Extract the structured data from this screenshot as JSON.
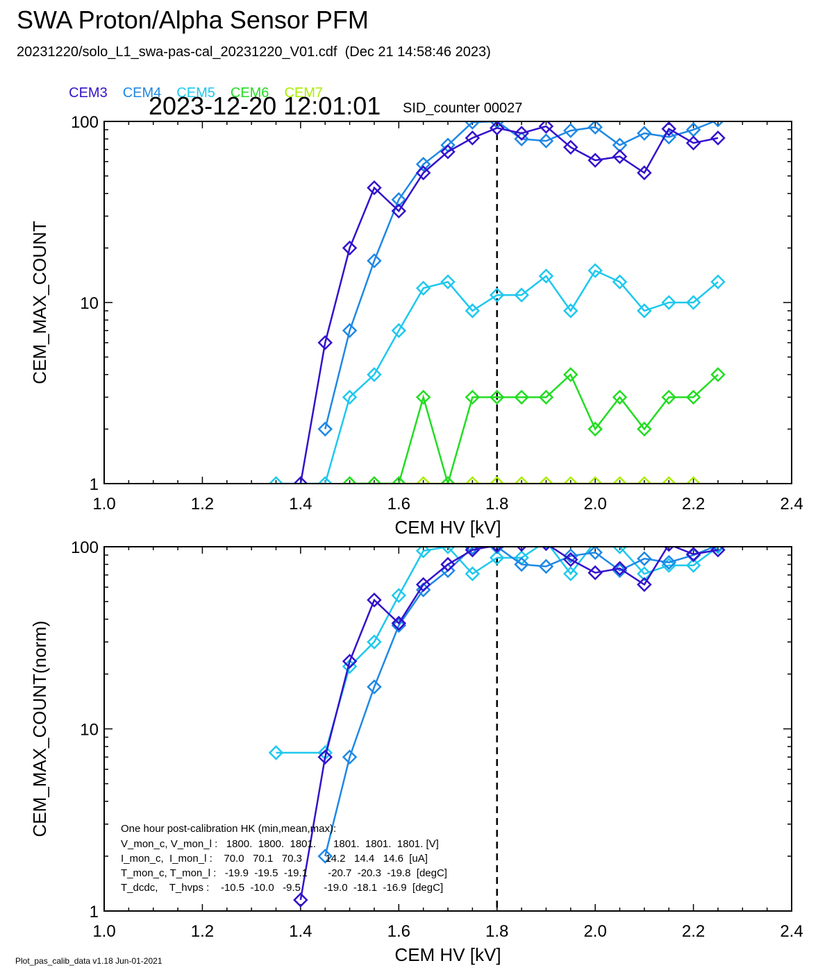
{
  "header": {
    "title": "SWA Proton/Alpha Sensor PFM",
    "subtitle": "20231220/solo_L1_swa-pas-cal_20231220_V01.cdf  (Dec 21 14:58:46 2023)",
    "timestamp": "2023-12-20 12:01:01",
    "sid_counter": "SID_counter 00027"
  },
  "legend": [
    {
      "label": "CEM3",
      "color": "#3311cc"
    },
    {
      "label": "CEM4",
      "color": "#1e88e5"
    },
    {
      "label": "CEM5",
      "color": "#1ec8ee"
    },
    {
      "label": "CEM6",
      "color": "#22dd22"
    },
    {
      "label": "CEM7",
      "color": "#aaee00"
    }
  ],
  "hk_table": {
    "title": "One hour post-calibration HK (min,mean,max):",
    "rows": [
      "V_mon_c, V_mon_l :   1800.  1800.  1801.      1801.  1801.  1801. [V]",
      "I_mon_c,  I_mon_l :    70.0   70.1   70.3        14.2   14.4   14.6  [uA]",
      "T_mon_c, T_mon_l :   -19.9  -19.5  -19.1       -20.7  -20.3  -19.8  [degC]",
      "T_dcdc,    T_hvps :    -10.5  -10.0   -9.5        -19.0  -18.1  -16.9  [degC]"
    ]
  },
  "footer": "Plot_pas_calib_data v1.18 Jun-01-2021",
  "chart_data": [
    {
      "type": "line",
      "xlabel": "CEM HV [kV]",
      "ylabel": "CEM_MAX_COUNT",
      "xlim": [
        1.0,
        2.4
      ],
      "ylim": [
        1,
        100
      ],
      "yscale": "log",
      "x_ticks": [
        "1.0",
        "1.2",
        "1.4",
        "1.6",
        "1.8",
        "2.0",
        "2.2",
        "2.4"
      ],
      "y_ticks": [
        "1",
        "10",
        "100"
      ],
      "marker": "diamond",
      "vline": 1.8,
      "series": [
        {
          "name": "CEM7",
          "color": "#aaee00",
          "x": [
            1.5,
            1.55,
            1.6,
            1.65,
            1.7,
            1.75,
            1.8,
            1.85,
            1.9,
            1.95,
            2.0,
            2.05,
            2.1,
            2.15,
            2.2
          ],
          "y": [
            1,
            1,
            1,
            1,
            1,
            1,
            1,
            1,
            1,
            1,
            1,
            1,
            1,
            1,
            1
          ]
        },
        {
          "name": "CEM6",
          "color": "#22dd22",
          "x": [
            1.5,
            1.55,
            1.6,
            1.65,
            1.7,
            1.75,
            1.8,
            1.85,
            1.9,
            1.95,
            2.0,
            2.05,
            2.1,
            2.15,
            2.2,
            2.25
          ],
          "y": [
            1,
            1,
            1,
            3,
            1,
            3,
            3,
            3,
            3,
            4,
            2,
            3,
            2,
            3,
            3,
            4
          ]
        },
        {
          "name": "CEM5",
          "color": "#1ec8ee",
          "x": [
            1.35,
            1.45,
            1.5,
            1.55,
            1.6,
            1.65,
            1.7,
            1.75,
            1.8,
            1.85,
            1.9,
            1.95,
            2.0,
            2.05,
            2.1,
            2.15,
            2.2,
            2.25
          ],
          "y": [
            1,
            1,
            3,
            4,
            7,
            12,
            13,
            9,
            11,
            11,
            14,
            9,
            15,
            13,
            9,
            10,
            10,
            13
          ]
        },
        {
          "name": "CEM4",
          "color": "#1e88e5",
          "x": [
            1.45,
            1.5,
            1.55,
            1.6,
            1.65,
            1.7,
            1.75,
            1.8,
            1.85,
            1.9,
            1.95,
            2.0,
            2.05,
            2.1,
            2.15,
            2.2,
            2.25
          ],
          "y": [
            2,
            7,
            17,
            37,
            58,
            74,
            99,
            100,
            80,
            78,
            89,
            93,
            74,
            86,
            82,
            90,
            102
          ]
        },
        {
          "name": "CEM3",
          "color": "#3311cc",
          "x": [
            1.4,
            1.45,
            1.5,
            1.55,
            1.6,
            1.65,
            1.7,
            1.75,
            1.8,
            1.85,
            1.9,
            1.95,
            2.0,
            2.05,
            2.1,
            2.15,
            2.2,
            2.25
          ],
          "y": [
            1,
            6,
            20,
            43,
            32,
            52,
            68,
            81,
            92,
            86,
            94,
            72,
            61,
            64,
            52,
            91,
            76,
            81
          ]
        }
      ]
    },
    {
      "type": "line",
      "xlabel": "CEM HV [kV]",
      "ylabel": "CEM_MAX_COUNT(norm)",
      "xlim": [
        1.0,
        2.4
      ],
      "ylim": [
        1,
        100
      ],
      "yscale": "log",
      "x_ticks": [
        "1.0",
        "1.2",
        "1.4",
        "1.6",
        "1.8",
        "2.0",
        "2.2",
        "2.4"
      ],
      "y_ticks": [
        "1",
        "10",
        "100"
      ],
      "marker": "diamond",
      "vline": 1.8,
      "series": [
        {
          "name": "CEM5",
          "color": "#1ec8ee",
          "x": [
            1.35,
            1.45,
            1.5,
            1.55,
            1.6,
            1.65,
            1.7,
            1.75,
            1.8,
            1.85,
            1.9,
            1.95,
            2.0,
            2.05,
            2.1,
            2.15,
            2.2,
            2.25
          ],
          "y": [
            7.4,
            7.4,
            22,
            30,
            54,
            95,
            100,
            71,
            87,
            87,
            107,
            71,
            107,
            100,
            71,
            79,
            79,
            100
          ]
        },
        {
          "name": "CEM4",
          "color": "#1e88e5",
          "x": [
            1.45,
            1.5,
            1.55,
            1.6,
            1.65,
            1.7,
            1.75,
            1.8,
            1.85,
            1.9,
            1.95,
            2.0,
            2.05,
            2.1,
            2.15,
            2.2,
            2.25
          ],
          "y": [
            2,
            7,
            17,
            37,
            58,
            74,
            99,
            100,
            80,
            78,
            89,
            93,
            74,
            86,
            82,
            90,
            102
          ]
        },
        {
          "name": "CEM3",
          "color": "#3311cc",
          "x": [
            1.4,
            1.45,
            1.5,
            1.55,
            1.6,
            1.65,
            1.7,
            1.75,
            1.8,
            1.85,
            1.9,
            1.95,
            2.0,
            2.05,
            2.1,
            2.15,
            2.2,
            2.25
          ],
          "y": [
            1.15,
            7,
            23.5,
            51,
            38,
            62,
            80,
            96,
            102,
            103,
            104,
            85,
            72,
            76,
            62,
            103,
            91,
            96
          ]
        }
      ]
    }
  ]
}
